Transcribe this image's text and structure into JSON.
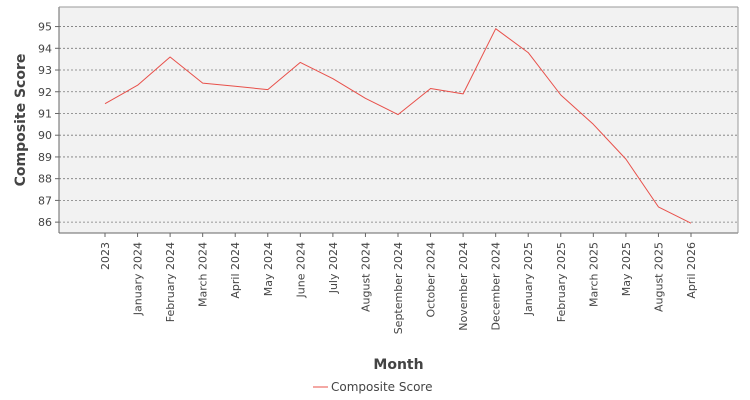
{
  "chart_data": {
    "type": "line",
    "title": "",
    "xlabel": "Month",
    "ylabel": "Composite Score",
    "categories": [
      "2023",
      "January 2024",
      "February 2024",
      "March 2024",
      "April 2024",
      "May 2024",
      "June 2024",
      "July 2024",
      "August 2024",
      "September 2024",
      "October 2024",
      "November 2024",
      "December 2024",
      "January 2025",
      "February 2025",
      "March 2025",
      "May 2025",
      "August 2025",
      "April 2026"
    ],
    "series": [
      {
        "name": "Composite Score",
        "color": "#e8504a",
        "values": [
          91.45,
          92.3,
          93.6,
          92.4,
          92.25,
          92.1,
          93.35,
          92.6,
          91.7,
          90.95,
          92.15,
          91.9,
          94.9,
          93.8,
          91.85,
          90.5,
          88.9,
          86.7,
          85.95
        ]
      }
    ],
    "ylim": [
      85.5,
      95.9
    ],
    "yticks": [
      86,
      87,
      88,
      89,
      90,
      91,
      92,
      93,
      94,
      95
    ],
    "grid": "horizontal dashed",
    "legend_position": "bottom-center",
    "plot_background": "#f2f2f2"
  }
}
